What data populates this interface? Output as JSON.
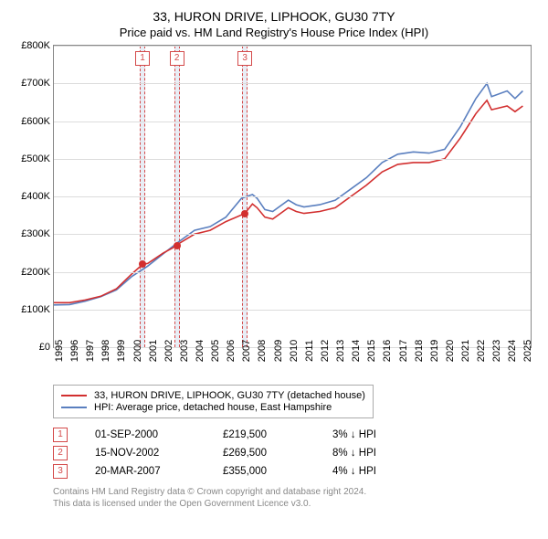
{
  "title_line1": "33, HURON DRIVE, LIPHOOK, GU30 7TY",
  "title_line2": "Price paid vs. HM Land Registry's House Price Index (HPI)",
  "chart": {
    "x_range": [
      1995,
      2025.5
    ],
    "y_range": [
      0,
      800000
    ],
    "y_ticks": [
      0,
      100000,
      200000,
      300000,
      400000,
      500000,
      600000,
      700000,
      800000
    ],
    "y_tick_labels": [
      "£0",
      "£100K",
      "£200K",
      "£300K",
      "£400K",
      "£500K",
      "£600K",
      "£700K",
      "£800K"
    ],
    "x_ticks": [
      1995,
      1996,
      1997,
      1998,
      1999,
      2000,
      2001,
      2002,
      2003,
      2004,
      2005,
      2006,
      2007,
      2008,
      2009,
      2010,
      2011,
      2012,
      2013,
      2014,
      2015,
      2016,
      2017,
      2018,
      2019,
      2020,
      2021,
      2022,
      2023,
      2024,
      2025
    ],
    "colors": {
      "grid": "#dcdcdc",
      "series_subject": "#d22f2f",
      "series_hpi": "#5a7fbf",
      "marker_border": "#d44a4a",
      "marker_band": "#e8edf5",
      "sale_dot": "#d22f2f"
    },
    "series_subject": [
      [
        1995,
        118000
      ],
      [
        1996,
        118000
      ],
      [
        1997,
        125000
      ],
      [
        1998,
        135000
      ],
      [
        1999,
        155000
      ],
      [
        2000,
        195000
      ],
      [
        2000.67,
        219500
      ],
      [
        2001,
        222000
      ],
      [
        2002,
        250000
      ],
      [
        2002.87,
        269500
      ],
      [
        2003,
        275000
      ],
      [
        2004,
        300000
      ],
      [
        2005,
        310000
      ],
      [
        2006,
        333000
      ],
      [
        2007.22,
        355000
      ],
      [
        2007.7,
        380000
      ],
      [
        2008,
        370000
      ],
      [
        2008.5,
        345000
      ],
      [
        2009,
        340000
      ],
      [
        2010,
        370000
      ],
      [
        2010.5,
        360000
      ],
      [
        2011,
        355000
      ],
      [
        2012,
        360000
      ],
      [
        2013,
        370000
      ],
      [
        2014,
        400000
      ],
      [
        2015,
        430000
      ],
      [
        2016,
        465000
      ],
      [
        2017,
        485000
      ],
      [
        2018,
        490000
      ],
      [
        2019,
        490000
      ],
      [
        2020,
        500000
      ],
      [
        2021,
        555000
      ],
      [
        2022,
        620000
      ],
      [
        2022.7,
        655000
      ],
      [
        2023,
        630000
      ],
      [
        2024,
        640000
      ],
      [
        2024.5,
        625000
      ],
      [
        2025,
        640000
      ]
    ],
    "series_hpi": [
      [
        1995,
        112000
      ],
      [
        1996,
        113000
      ],
      [
        1997,
        122000
      ],
      [
        1998,
        134000
      ],
      [
        1999,
        152000
      ],
      [
        2000,
        188000
      ],
      [
        2001,
        215000
      ],
      [
        2002,
        248000
      ],
      [
        2003,
        280000
      ],
      [
        2004,
        310000
      ],
      [
        2005,
        320000
      ],
      [
        2006,
        345000
      ],
      [
        2007,
        395000
      ],
      [
        2007.7,
        405000
      ],
      [
        2008,
        395000
      ],
      [
        2008.5,
        365000
      ],
      [
        2009,
        360000
      ],
      [
        2010,
        390000
      ],
      [
        2010.5,
        378000
      ],
      [
        2011,
        372000
      ],
      [
        2012,
        378000
      ],
      [
        2013,
        390000
      ],
      [
        2014,
        420000
      ],
      [
        2015,
        450000
      ],
      [
        2016,
        490000
      ],
      [
        2017,
        512000
      ],
      [
        2018,
        518000
      ],
      [
        2019,
        515000
      ],
      [
        2020,
        525000
      ],
      [
        2021,
        585000
      ],
      [
        2022,
        660000
      ],
      [
        2022.7,
        700000
      ],
      [
        2023,
        665000
      ],
      [
        2024,
        680000
      ],
      [
        2024.5,
        660000
      ],
      [
        2025,
        680000
      ]
    ],
    "sale_points": [
      {
        "x": 2000.67,
        "y": 219500
      },
      {
        "x": 2002.87,
        "y": 269500
      },
      {
        "x": 2007.22,
        "y": 355000
      }
    ],
    "annotations": [
      {
        "num": "1",
        "x": 2000.67
      },
      {
        "num": "2",
        "x": 2002.87
      },
      {
        "num": "3",
        "x": 2007.22
      }
    ]
  },
  "legend": {
    "items": [
      {
        "color": "#d22f2f",
        "label": "33, HURON DRIVE, LIPHOOK, GU30 7TY (detached house)"
      },
      {
        "color": "#5a7fbf",
        "label": "HPI: Average price, detached house, East Hampshire"
      }
    ]
  },
  "sales": [
    {
      "num": "1",
      "date": "01-SEP-2000",
      "price": "£219,500",
      "delta": "3% ↓ HPI"
    },
    {
      "num": "2",
      "date": "15-NOV-2002",
      "price": "£269,500",
      "delta": "8% ↓ HPI"
    },
    {
      "num": "3",
      "date": "20-MAR-2007",
      "price": "£355,000",
      "delta": "4% ↓ HPI"
    }
  ],
  "footer_line1": "Contains HM Land Registry data © Crown copyright and database right 2024.",
  "footer_line2": "This data is licensed under the Open Government Licence v3.0."
}
